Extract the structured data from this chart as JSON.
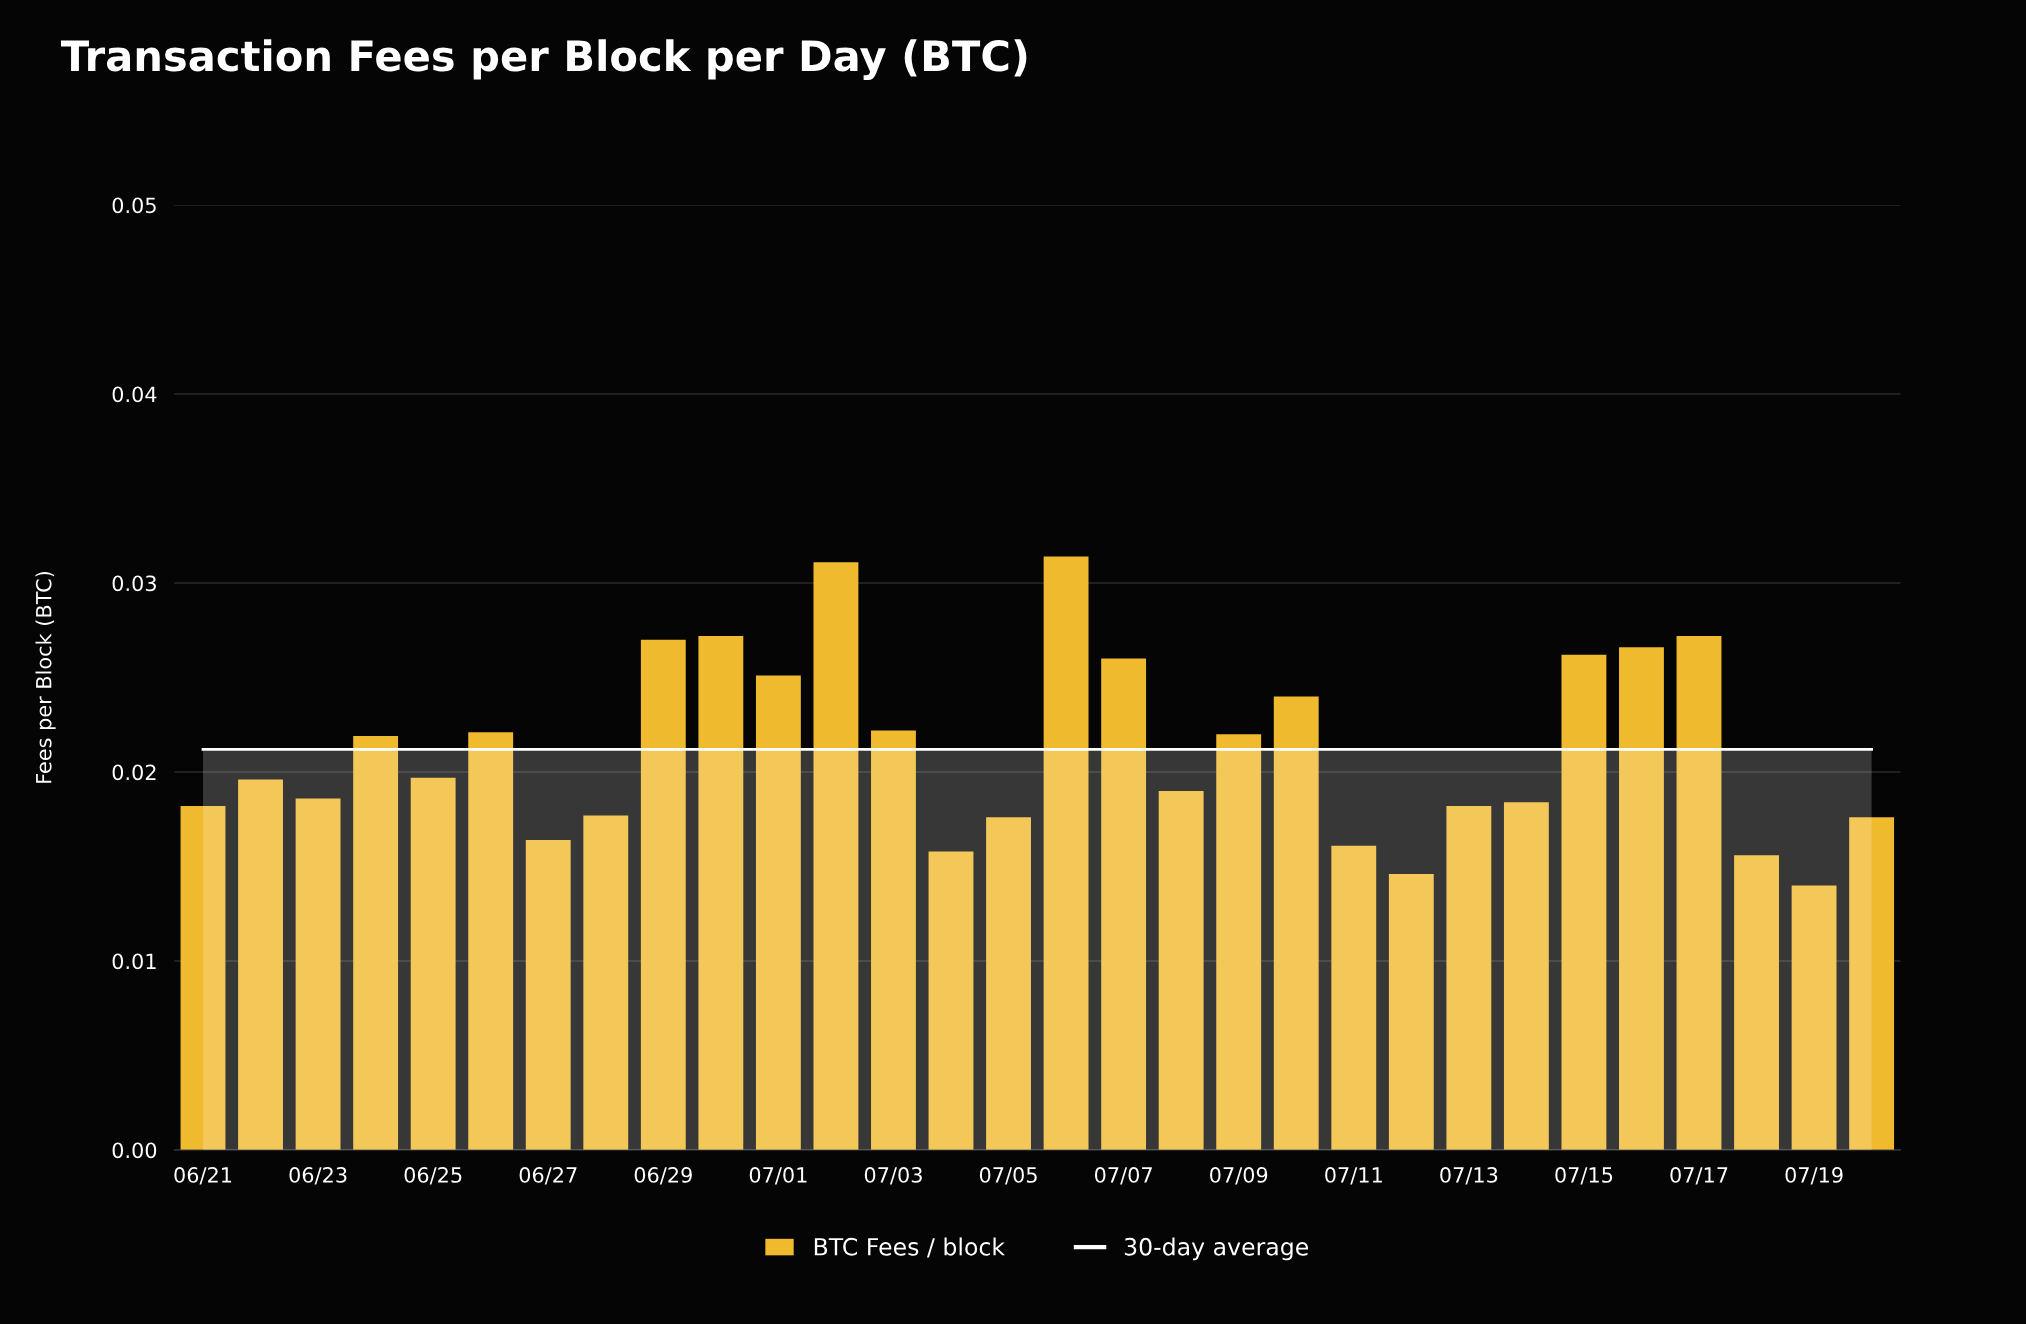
{
  "chart_data": {
    "type": "bar",
    "title": "Transaction Fees per Block per Day (BTC)",
    "ylabel": "Fees per Block (BTC)",
    "categories": [
      "06/21",
      null,
      "06/23",
      null,
      "06/25",
      null,
      "06/27",
      null,
      "06/29",
      null,
      "07/01",
      null,
      "07/03",
      null,
      "07/05",
      null,
      "07/07",
      null,
      "07/09",
      null,
      "07/11",
      null,
      "07/13",
      null,
      "07/15",
      null,
      "07/17",
      null,
      "07/19",
      null
    ],
    "series": [
      {
        "name": "BTC Fees / block",
        "color": "#f0ba2f",
        "values": [
          0.0182,
          0.0196,
          0.0186,
          0.0219,
          0.0197,
          0.0221,
          0.0164,
          0.0177,
          0.027,
          0.0272,
          0.0251,
          0.0311,
          0.0222,
          0.0158,
          0.0176,
          0.0314,
          0.026,
          0.019,
          0.022,
          0.024,
          0.0161,
          0.0146,
          0.0182,
          0.0184,
          0.0262,
          0.0266,
          0.0272,
          0.0156,
          0.014,
          0.0176
        ]
      },
      {
        "name": "30-day average",
        "type": "area",
        "color": "#ffffff",
        "values": [
          0.0212,
          0.0212,
          0.0212,
          0.0212,
          0.0212,
          0.0212,
          0.0212,
          0.0212,
          0.0212,
          0.0212,
          0.0212,
          0.0212,
          0.0212,
          0.0212,
          0.0212,
          0.0212,
          0.0212,
          0.0212,
          0.0212,
          0.0212,
          0.0212,
          0.0212,
          0.0212,
          0.0212,
          0.0212,
          0.0212,
          0.0212,
          0.0212,
          0.0212,
          0.0212
        ]
      }
    ],
    "ylim": [
      0,
      0.05
    ],
    "yticks": [
      {
        "value": 0,
        "label": "0.00"
      },
      {
        "value": 0.01,
        "label": "0.01"
      },
      {
        "value": 0.02,
        "label": "0.02"
      },
      {
        "value": 0.03,
        "label": "0.03"
      },
      {
        "value": 0.04,
        "label": "0.04"
      },
      {
        "value": 0.05,
        "label": "0.05"
      }
    ],
    "grid": "y",
    "legend": "bottom"
  }
}
